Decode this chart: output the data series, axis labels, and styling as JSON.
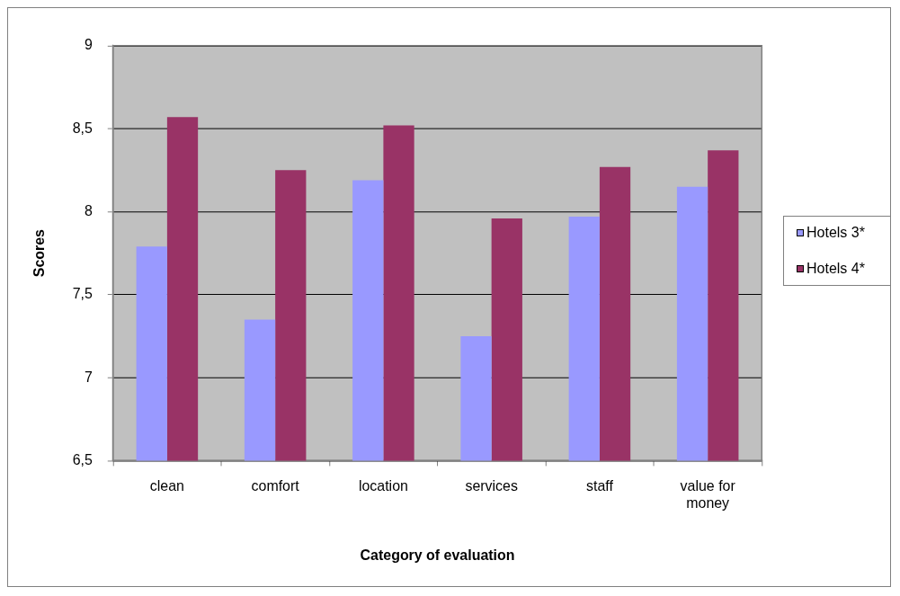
{
  "chart_data": {
    "type": "bar",
    "xlabel": "Category of evaluation",
    "ylabel": "Scores",
    "categories": [
      "clean",
      "comfort",
      "location",
      "services",
      "staff",
      "value for money"
    ],
    "series": [
      {
        "name": "Hotels 3*",
        "color": "#9999ff",
        "values": [
          7.79,
          7.35,
          8.19,
          7.25,
          7.97,
          8.15
        ]
      },
      {
        "name": "Hotels 4*",
        "color": "#993366",
        "values": [
          8.57,
          8.25,
          8.52,
          7.96,
          8.27,
          8.37
        ]
      }
    ],
    "ylim": [
      6.5,
      9
    ],
    "yticks": [
      {
        "value": 6.5,
        "label": "6,5"
      },
      7,
      {
        "value": 7.5,
        "label": "7,5"
      },
      8,
      {
        "value": 8.5,
        "label": "8,5"
      },
      9
    ],
    "grid": "y",
    "legend": "right"
  }
}
